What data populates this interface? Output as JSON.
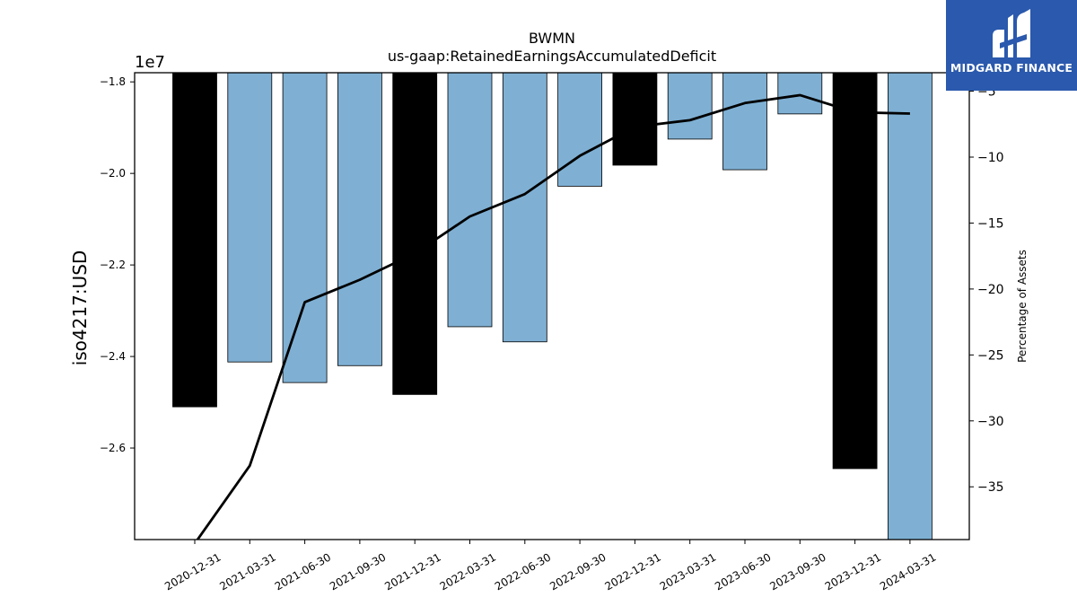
{
  "logo": {
    "text": "MIDGARD FINANCE",
    "background": "#2a59ad"
  },
  "chart_data": {
    "type": "bar",
    "title": "BWMN",
    "subtitle": "us-gaap:RetainedEarningsAccumulatedDeficit",
    "ylabel": "iso4217:USD",
    "y_offset_label": "1e7",
    "y2label": "Percentage of Assets",
    "categories": [
      "2020-12-31",
      "2021-03-31",
      "2021-06-30",
      "2021-09-30",
      "2021-12-31",
      "2022-03-31",
      "2022-06-30",
      "2022-09-30",
      "2022-12-31",
      "2023-03-31",
      "2023-06-30",
      "2023-09-30",
      "2023-12-31",
      "2024-03-31"
    ],
    "values": [
      -25.1,
      -24.12,
      -24.57,
      -24.2,
      -24.83,
      -23.35,
      -23.68,
      -20.28,
      -19.82,
      -19.25,
      -19.92,
      -18.7,
      -26.45,
      -28.2
    ],
    "value_scale": 10000000,
    "bar_colors": [
      "#000000",
      "#7fb0d4",
      "#7fb0d4",
      "#7fb0d4",
      "#000000",
      "#7fb0d4",
      "#7fb0d4",
      "#7fb0d4",
      "#000000",
      "#7fb0d4",
      "#7fb0d4",
      "#7fb0d4",
      "#000000",
      "#7fb0d4"
    ],
    "ylim": [
      -28.0,
      -17.8
    ],
    "yticks": [
      -26.0,
      -24.0,
      -22.0,
      -20.0,
      -18.0
    ],
    "ytick_labels": [
      "−2.6",
      "−2.4",
      "−2.2",
      "−2.0",
      "−1.8"
    ],
    "series": [
      {
        "axis": "secondary",
        "color": "#000000",
        "values": [
          -39.3,
          -33.4,
          -21.0,
          -19.3,
          -17.3,
          -14.5,
          -12.8,
          -9.9,
          -7.7,
          -7.2,
          -5.9,
          -5.3,
          -6.6,
          -6.7
        ]
      }
    ],
    "y2lim": [
      -39.0,
      -3.6
    ],
    "y2ticks": [
      -35,
      -30,
      -25,
      -20,
      -15,
      -10,
      -5
    ],
    "y2tick_labels": [
      "−35",
      "−30",
      "−25",
      "−20",
      "−15",
      "−10",
      "−5"
    ],
    "grid": false
  }
}
